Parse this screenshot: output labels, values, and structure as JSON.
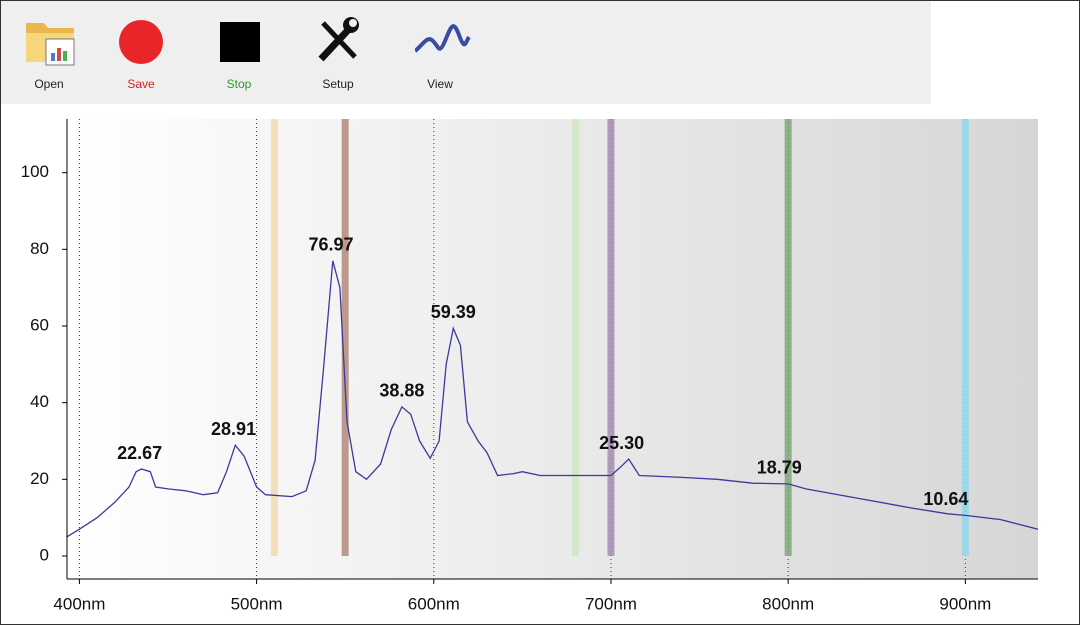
{
  "toolbar": {
    "buttons": [
      "Open",
      "Save",
      "Stop",
      "Setup",
      "View"
    ]
  },
  "chart_data": {
    "type": "line",
    "color": "#3a3a9a",
    "x": [
      393,
      400,
      410,
      420,
      428,
      432,
      435,
      440,
      443,
      450,
      460,
      470,
      478,
      483,
      488,
      493,
      500,
      505,
      520,
      528,
      533,
      538,
      543,
      547,
      551,
      556,
      562,
      570,
      576,
      582,
      587,
      592,
      598,
      603,
      607,
      611,
      615,
      619,
      625,
      630,
      636,
      645,
      650,
      660,
      680,
      700,
      705,
      710,
      716,
      740,
      760,
      780,
      800,
      810,
      840,
      870,
      890,
      900,
      920,
      941
    ],
    "values": [
      5,
      7,
      10,
      14,
      18,
      22,
      22.7,
      22,
      18,
      17.5,
      17,
      16,
      16.5,
      22,
      28.9,
      26,
      18,
      16,
      15.5,
      17,
      25,
      50,
      77,
      70,
      35,
      22,
      20,
      24,
      33,
      38.9,
      37,
      30,
      25.5,
      30,
      50,
      59.4,
      55,
      35,
      30,
      27,
      21,
      21.5,
      22,
      21,
      21,
      21,
      23,
      25.3,
      21,
      20.5,
      20,
      19,
      18.8,
      17.5,
      15,
      12.5,
      11,
      10.6,
      9.5,
      7
    ],
    "annotations": {
      "x": [
        434,
        487,
        542,
        582,
        611,
        706,
        795,
        889
      ],
      "values": [
        22.67,
        28.91,
        76.97,
        38.88,
        59.39,
        25.3,
        18.79,
        10.64
      ],
      "value_labels": [
        "22.67",
        "28.91",
        "76.97",
        "38.88",
        "59.39",
        "25.30",
        "18.79",
        "10.64"
      ]
    },
    "markers": [
      {
        "x": 510,
        "color": "#f5d9b0"
      },
      {
        "x": 550,
        "color": "#b08a78"
      },
      {
        "x": 680,
        "color": "#cfe6c4"
      },
      {
        "x": 700,
        "color": "#a48cb0"
      },
      {
        "x": 800,
        "color": "#7fa87a"
      },
      {
        "x": 900,
        "color": "#8fd8ec"
      }
    ],
    "xlim": [
      393,
      941
    ],
    "ylim": [
      -6,
      114
    ],
    "xticks": [
      {
        "value": 400,
        "label": "400nm"
      },
      {
        "value": 500,
        "label": "500nm"
      },
      {
        "value": 600,
        "label": "600nm"
      },
      {
        "value": 700,
        "label": "700nm"
      },
      {
        "value": 800,
        "label": "800nm"
      },
      {
        "value": 900,
        "label": "900nm"
      }
    ],
    "yticks": [
      0,
      20,
      40,
      60,
      80,
      100
    ],
    "grid": true
  }
}
